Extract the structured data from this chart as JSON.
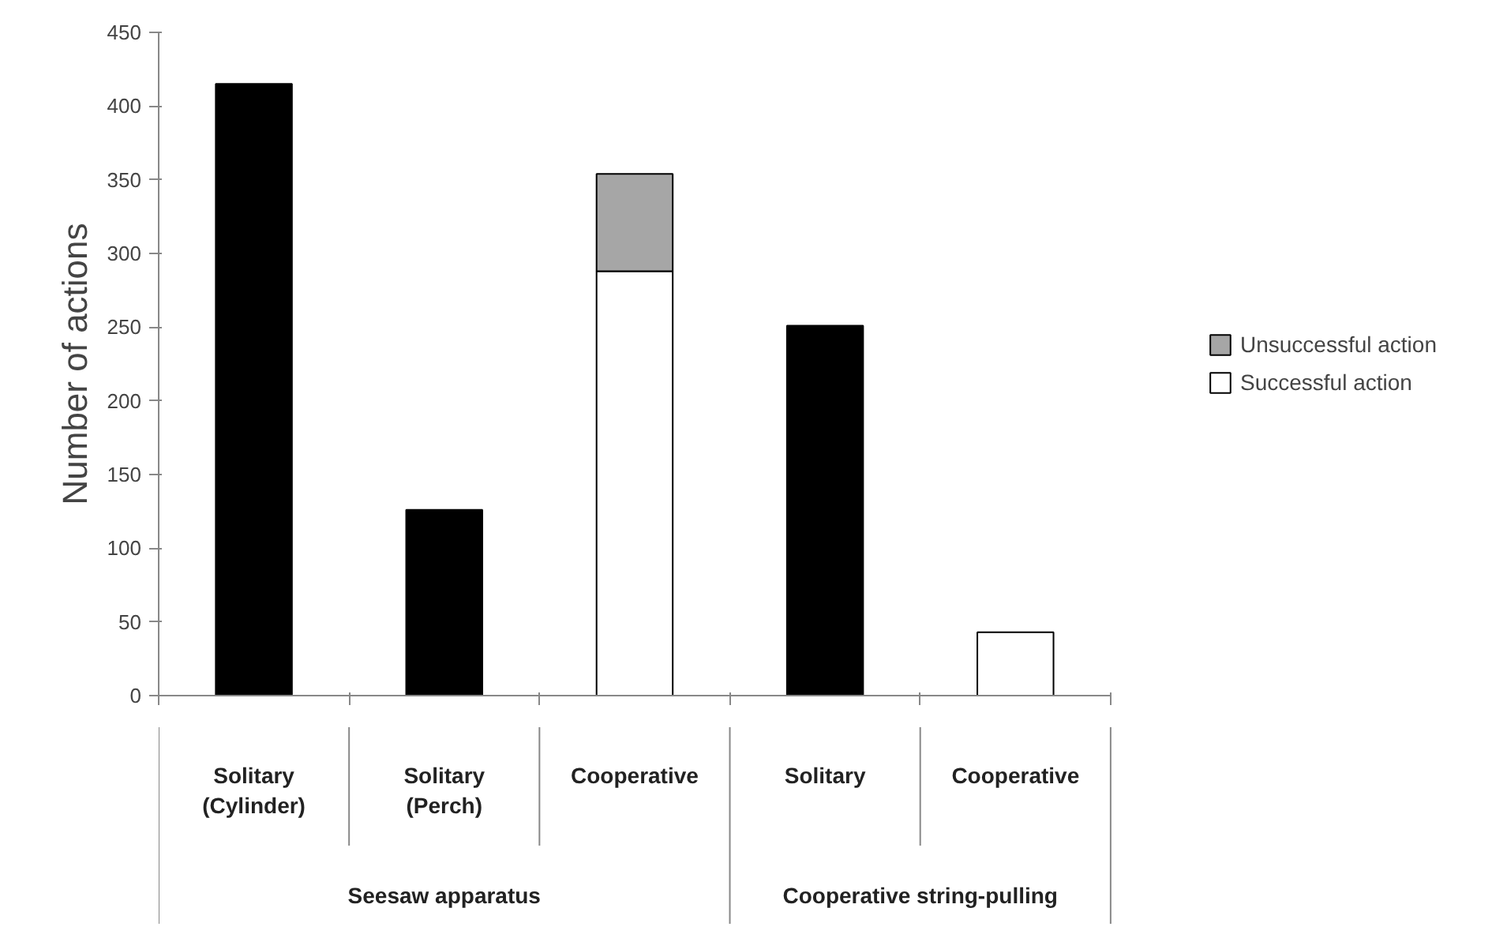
{
  "chart_data": {
    "type": "bar",
    "ylabel": "Number of actions",
    "categories": [
      "Solitary\n(Cylinder)",
      "Solitary\n(Perch)",
      "Cooperative",
      "Solitary",
      "Cooperative"
    ],
    "series": [
      {
        "color": "#000000",
        "values": [
          415,
          126,
          null,
          251,
          null
        ]
      },
      {
        "name": "Successful action",
        "color": "#ffffff",
        "values": [
          null,
          null,
          288,
          null,
          43
        ]
      },
      {
        "name": "Unsuccessful action",
        "color": "#a6a6a6",
        "values": [
          null,
          null,
          66,
          null,
          null
        ]
      }
    ],
    "stacked": true,
    "ylim": [
      0,
      450
    ],
    "yticks": [
      0,
      50,
      100,
      150,
      200,
      250,
      300,
      350,
      400,
      450
    ],
    "grid": false,
    "legend": "right",
    "annotations": [
      "Seesaw apparatus",
      "Cooperative string-pulling"
    ]
  }
}
